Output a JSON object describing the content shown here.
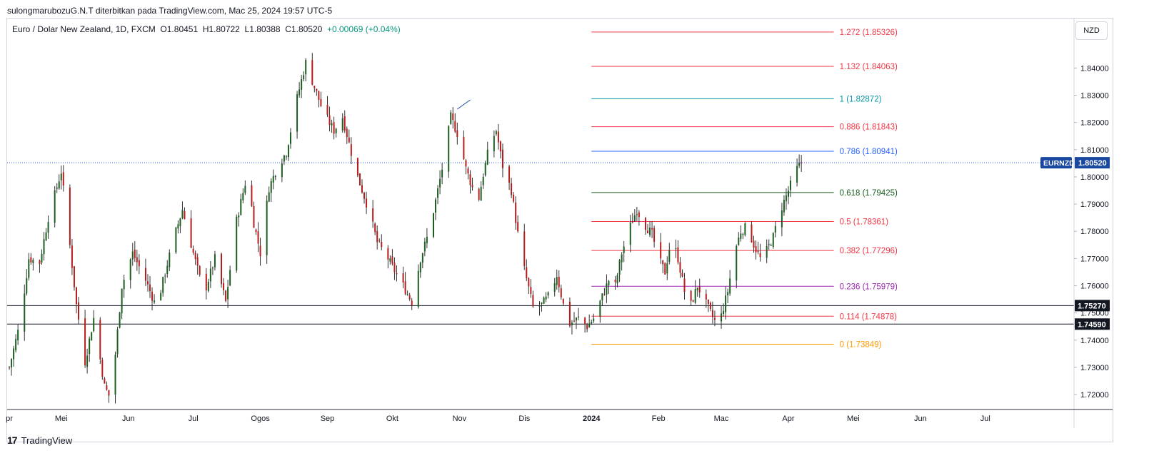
{
  "header": {
    "attribution": "sulongmarubozuG.N.T diterbitkan pada TradingView.com, Mac 25, 2024 19:57 UTC-5"
  },
  "legend": {
    "title": "Euro / Dolar New Zealand, 1D, FXCM",
    "open": "O1.80451",
    "high": "H1.80722",
    "low": "L1.80388",
    "close": "C1.80520",
    "change": "+0.00069 (+0.04%)"
  },
  "currency_button": "NZD",
  "footer": {
    "logo_text": "TradingView"
  },
  "colors": {
    "up": "#089981",
    "up_body": "#1b5e20",
    "down": "#b71c1c",
    "wick": "#333333",
    "price_line": "#2962ff",
    "last_label": "#1848a0"
  },
  "chart_data": {
    "type": "candlestick",
    "symbol_label": "EURNZD",
    "last_price": "1.80520",
    "y_range": [
      1.7145,
      1.8582
    ],
    "y_ticks": [
      "1.84000",
      "1.83000",
      "1.82000",
      "1.81000",
      "1.80000",
      "1.79000",
      "1.78000",
      "1.77000",
      "1.76000",
      "1.75000",
      "1.74000",
      "1.73000",
      "1.72000"
    ],
    "x_labels": [
      {
        "label": "pr",
        "day": 0
      },
      {
        "label": "Mei",
        "day": 24
      },
      {
        "label": "Jun",
        "day": 55
      },
      {
        "label": "Jul",
        "day": 85
      },
      {
        "label": "Ogos",
        "day": 116
      },
      {
        "label": "Sep",
        "day": 147
      },
      {
        "label": "Okt",
        "day": 177
      },
      {
        "label": "Nov",
        "day": 208
      },
      {
        "label": "Dis",
        "day": 238
      },
      {
        "label": "2024",
        "day": 269
      },
      {
        "label": "Feb",
        "day": 300
      },
      {
        "label": "Mac",
        "day": 329
      },
      {
        "label": "Apr",
        "day": 360
      },
      {
        "label": "Mei",
        "day": 390
      },
      {
        "label": "Jun",
        "day": 421
      },
      {
        "label": "Jul",
        "day": 451
      }
    ],
    "x_range_days": [
      -1,
      492
    ],
    "horizontal_levels": [
      {
        "value": 1.7527,
        "label": "1.75270"
      },
      {
        "value": 1.7459,
        "label": "1.74590"
      }
    ],
    "fib_range_days": [
      269,
      381
    ],
    "fib_levels": [
      {
        "ratio": "1.272",
        "value": 1.85326,
        "label": "1.272 (1.85326)",
        "color": "#f23645"
      },
      {
        "ratio": "1.132",
        "value": 1.84063,
        "label": "1.132 (1.84063)",
        "color": "#f23645"
      },
      {
        "ratio": "1",
        "value": 1.82872,
        "label": "1 (1.82872)",
        "color": "#0097a7"
      },
      {
        "ratio": "0.886",
        "value": 1.81843,
        "label": "0.886 (1.81843)",
        "color": "#f23645"
      },
      {
        "ratio": "0.786",
        "value": 1.80941,
        "label": "0.786 (1.80941)",
        "color": "#2962ff"
      },
      {
        "ratio": "0.618",
        "value": 1.79425,
        "label": "0.618 (1.79425)",
        "color": "#1b5e20"
      },
      {
        "ratio": "0.5",
        "value": 1.78361,
        "label": "0.5 (1.78361)",
        "color": "#f23645"
      },
      {
        "ratio": "0.382",
        "value": 1.77296,
        "label": "0.382 (1.77296)",
        "color": "#f23645"
      },
      {
        "ratio": "0.236",
        "value": 1.75979,
        "label": "0.236 (1.75979)",
        "color": "#9c27b0"
      },
      {
        "ratio": "0.114",
        "value": 1.74878,
        "label": "0.114 (1.74878)",
        "color": "#f23645"
      },
      {
        "ratio": "0",
        "value": 1.73849,
        "label": "0 (1.73849)",
        "color": "#ff9800"
      }
    ],
    "trend_note_line": [
      {
        "day": 207,
        "price": 1.8249
      },
      {
        "day": 213,
        "price": 1.8283
      }
    ],
    "close_path_anchors": [
      {
        "day": 0,
        "close": 1.73
      },
      {
        "day": 5,
        "close": 1.7465
      },
      {
        "day": 9,
        "close": 1.77
      },
      {
        "day": 14,
        "close": 1.7685
      },
      {
        "day": 18,
        "close": 1.785
      },
      {
        "day": 24,
        "close": 1.802
      },
      {
        "day": 27,
        "close": 1.782
      },
      {
        "day": 31,
        "close": 1.753
      },
      {
        "day": 35,
        "close": 1.732
      },
      {
        "day": 39,
        "close": 1.748
      },
      {
        "day": 44,
        "close": 1.723
      },
      {
        "day": 47,
        "close": 1.718
      },
      {
        "day": 52,
        "close": 1.76
      },
      {
        "day": 57,
        "close": 1.772
      },
      {
        "day": 63,
        "close": 1.762
      },
      {
        "day": 68,
        "close": 1.752
      },
      {
        "day": 73,
        "close": 1.768
      },
      {
        "day": 77,
        "close": 1.78
      },
      {
        "day": 80,
        "close": 1.788
      },
      {
        "day": 85,
        "close": 1.772
      },
      {
        "day": 90,
        "close": 1.757
      },
      {
        "day": 95,
        "close": 1.77
      },
      {
        "day": 100,
        "close": 1.754
      },
      {
        "day": 105,
        "close": 1.784
      },
      {
        "day": 110,
        "close": 1.801
      },
      {
        "day": 113,
        "close": 1.783
      },
      {
        "day": 116,
        "close": 1.772
      },
      {
        "day": 120,
        "close": 1.796
      },
      {
        "day": 124,
        "close": 1.804
      },
      {
        "day": 128,
        "close": 1.809
      },
      {
        "day": 133,
        "close": 1.829
      },
      {
        "day": 137,
        "close": 1.842
      },
      {
        "day": 141,
        "close": 1.833
      },
      {
        "day": 145,
        "close": 1.824
      },
      {
        "day": 150,
        "close": 1.817
      },
      {
        "day": 154,
        "close": 1.822
      },
      {
        "day": 158,
        "close": 1.809
      },
      {
        "day": 161,
        "close": 1.8
      },
      {
        "day": 166,
        "close": 1.788
      },
      {
        "day": 170,
        "close": 1.776
      },
      {
        "day": 175,
        "close": 1.77
      },
      {
        "day": 179,
        "close": 1.764
      },
      {
        "day": 182,
        "close": 1.76
      },
      {
        "day": 186,
        "close": 1.754
      },
      {
        "day": 190,
        "close": 1.77
      },
      {
        "day": 194,
        "close": 1.78
      },
      {
        "day": 198,
        "close": 1.795
      },
      {
        "day": 201,
        "close": 1.807
      },
      {
        "day": 204,
        "close": 1.822
      },
      {
        "day": 208,
        "close": 1.814
      },
      {
        "day": 211,
        "close": 1.803
      },
      {
        "day": 214,
        "close": 1.796
      },
      {
        "day": 216,
        "close": 1.788
      },
      {
        "day": 219,
        "close": 1.801
      },
      {
        "day": 222,
        "close": 1.812
      },
      {
        "day": 225,
        "close": 1.817
      },
      {
        "day": 228,
        "close": 1.804
      },
      {
        "day": 232,
        "close": 1.795
      },
      {
        "day": 235,
        "close": 1.779
      },
      {
        "day": 238,
        "close": 1.766
      },
      {
        "day": 242,
        "close": 1.752
      },
      {
        "day": 246,
        "close": 1.753
      },
      {
        "day": 250,
        "close": 1.757
      },
      {
        "day": 253,
        "close": 1.764
      },
      {
        "day": 256,
        "close": 1.753
      },
      {
        "day": 259,
        "close": 1.746
      },
      {
        "day": 263,
        "close": 1.748
      },
      {
        "day": 267,
        "close": 1.745
      },
      {
        "day": 270,
        "close": 1.748
      },
      {
        "day": 274,
        "close": 1.756
      },
      {
        "day": 277,
        "close": 1.762
      },
      {
        "day": 280,
        "close": 1.76
      },
      {
        "day": 283,
        "close": 1.772
      },
      {
        "day": 287,
        "close": 1.782
      },
      {
        "day": 290,
        "close": 1.788
      },
      {
        "day": 293,
        "close": 1.783
      },
      {
        "day": 297,
        "close": 1.779
      },
      {
        "day": 300,
        "close": 1.77
      },
      {
        "day": 303,
        "close": 1.765
      },
      {
        "day": 306,
        "close": 1.778
      },
      {
        "day": 309,
        "close": 1.77
      },
      {
        "day": 312,
        "close": 1.758
      },
      {
        "day": 315,
        "close": 1.753
      },
      {
        "day": 318,
        "close": 1.76
      },
      {
        "day": 321,
        "close": 1.755
      },
      {
        "day": 324,
        "close": 1.75
      },
      {
        "day": 327,
        "close": 1.7455
      },
      {
        "day": 329,
        "close": 1.749
      },
      {
        "day": 332,
        "close": 1.758
      },
      {
        "day": 335,
        "close": 1.772
      },
      {
        "day": 338,
        "close": 1.78
      },
      {
        "day": 341,
        "close": 1.782
      },
      {
        "day": 344,
        "close": 1.775
      },
      {
        "day": 347,
        "close": 1.77
      },
      {
        "day": 350,
        "close": 1.773
      },
      {
        "day": 353,
        "close": 1.778
      },
      {
        "day": 356,
        "close": 1.787
      },
      {
        "day": 359,
        "close": 1.793
      },
      {
        "day": 362,
        "close": 1.799
      },
      {
        "day": 364,
        "close": 1.803
      },
      {
        "day": 366,
        "close": 1.8052
      }
    ]
  }
}
